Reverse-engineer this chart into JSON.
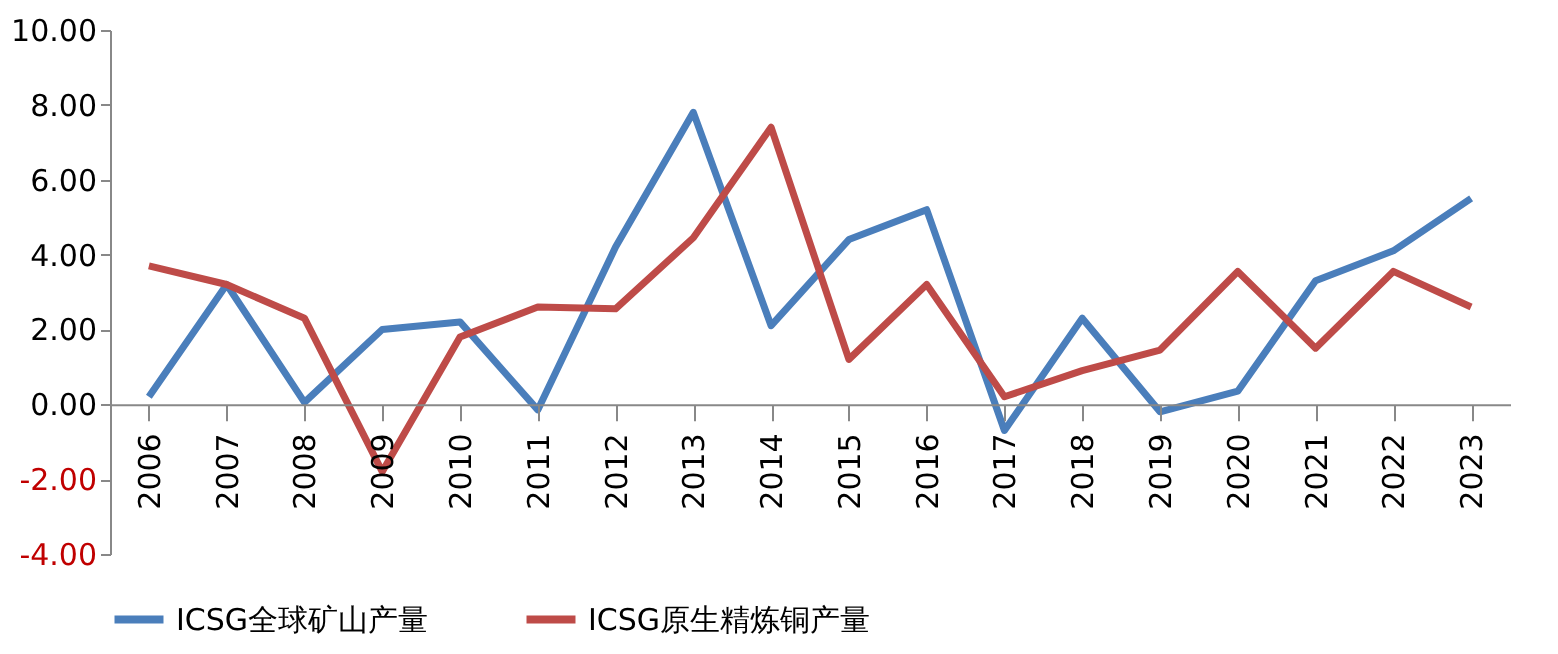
{
  "chart_data": {
    "type": "line",
    "categories": [
      "2006",
      "2007",
      "2008",
      "2009",
      "2010",
      "2011",
      "2012",
      "2013",
      "2014",
      "2015",
      "2016",
      "2017",
      "2018",
      "2019",
      "2020",
      "2021",
      "2022",
      "2023"
    ],
    "series": [
      {
        "name": "ICSG全球矿山产量",
        "color": "#4a7ebb",
        "values": [
          0.2,
          3.2,
          0.05,
          2.0,
          2.2,
          -0.15,
          4.2,
          7.8,
          2.1,
          4.4,
          5.2,
          -0.7,
          2.3,
          -0.2,
          0.35,
          3.3,
          4.1,
          5.5
        ]
      },
      {
        "name": "ICSG原生精炼铜产量",
        "color": "#be4b48",
        "values": [
          3.7,
          3.2,
          2.3,
          -1.8,
          1.8,
          2.6,
          2.55,
          4.45,
          7.4,
          1.2,
          3.2,
          0.2,
          0.9,
          1.45,
          3.55,
          1.5,
          3.55,
          2.6
        ]
      }
    ],
    "ylim": [
      -4,
      10
    ],
    "yticks": [
      {
        "value": -4,
        "label": "-4.00"
      },
      {
        "value": -2,
        "label": "-2.00"
      },
      {
        "value": 0,
        "label": "0.00"
      },
      {
        "value": 2,
        "label": "2.00"
      },
      {
        "value": 4,
        "label": "4.00"
      },
      {
        "value": 6,
        "label": "6.00"
      },
      {
        "value": 8,
        "label": "8.00"
      },
      {
        "value": 10,
        "label": "10.00"
      }
    ],
    "grid": false,
    "legend": "bottom",
    "marker": "none",
    "line_style": "solid"
  }
}
